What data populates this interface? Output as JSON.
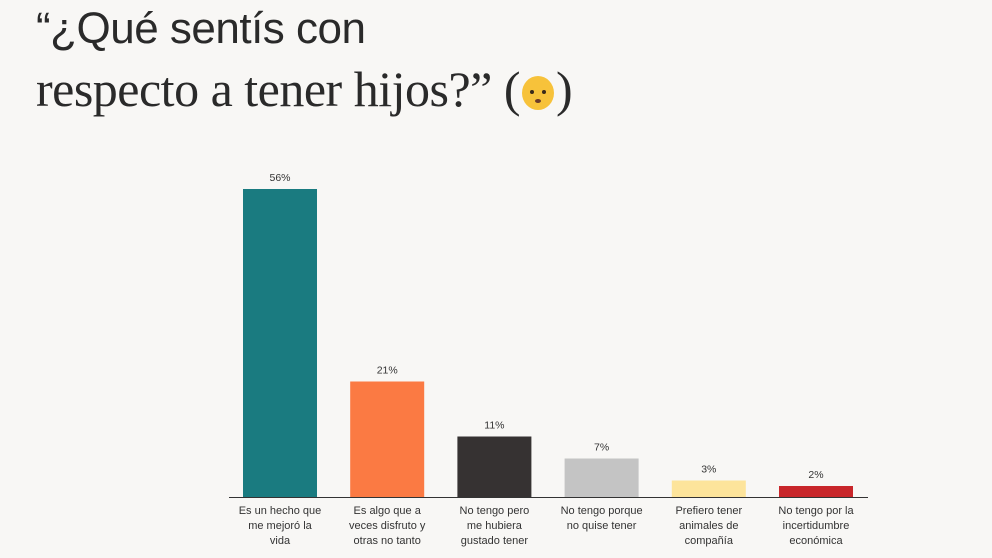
{
  "title": {
    "line1": "“¿Qué sentís con",
    "line2": "respecto a tener hijos?”",
    "paren_open": "(",
    "paren_close": ")",
    "emoji_icon": "baby-face-icon"
  },
  "chart_data": {
    "type": "bar",
    "title": "“¿Qué sentís con respecto a tener hijos?”",
    "categories": [
      [
        "Es un hecho que",
        "me mejoró la",
        "vida"
      ],
      [
        "Es algo que a",
        "veces disfruto y",
        "otras no tanto"
      ],
      [
        "No tengo pero",
        "me hubiera",
        "gustado tener"
      ],
      [
        "No tengo porque",
        "no quise tener"
      ],
      [
        "Prefiero tener",
        "animales de",
        "compañía"
      ],
      [
        "No tengo por la",
        "incertidumbre",
        "económica"
      ]
    ],
    "values": [
      56,
      21,
      11,
      7,
      3,
      2
    ],
    "value_labels": [
      "56%",
      "21%",
      "11%",
      "7%",
      "3%",
      "2%"
    ],
    "colors": [
      "#1a7b80",
      "#fb7a43",
      "#363232",
      "#c4c4c4",
      "#fde49b",
      "#c8262a"
    ],
    "ylim": [
      0,
      56
    ],
    "grid": false,
    "xlabel": "",
    "ylabel": ""
  }
}
